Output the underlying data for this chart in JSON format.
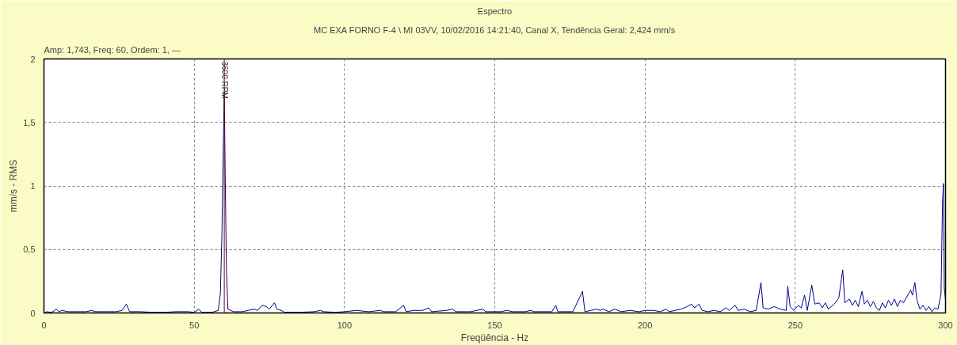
{
  "chart_data": {
    "type": "line",
    "title": "Espectro",
    "subtitle": "MC EXA FORNO F-4 \\ MI 03VV, 10/02/2016 14:21:40, Canal X, Tendência Geral: 2,424 mm/s",
    "annotations": [
      "Amp: 1,743, Freq: 60, Ordem: 1, —"
    ],
    "xlabel": "Freqüência - Hz",
    "ylabel": "mm/s - RMS",
    "xlim": [
      0,
      300
    ],
    "ylim": [
      0,
      2
    ],
    "xticks": [
      0,
      50,
      100,
      150,
      200,
      250,
      300
    ],
    "yticks": [
      0,
      {
        "value": 0.5,
        "label": "0,5"
      },
      1,
      {
        "value": 1.5,
        "label": "1,5"
      },
      2
    ],
    "grid": true,
    "marker": "none",
    "line_style": "solid",
    "ref_lines": [
      {
        "axis": "x",
        "value": 60,
        "label": "3600 RPM",
        "color": "#800000"
      }
    ],
    "series": [
      {
        "color": "#00008b",
        "x": [
          0,
          1,
          2,
          3,
          4,
          5,
          6,
          8,
          10,
          12,
          14,
          16,
          17,
          20,
          24,
          26,
          27.4,
          28.5,
          32,
          36,
          40,
          44,
          48,
          50,
          51.5,
          52.5,
          56,
          58,
          58.7,
          59.2,
          59.6,
          60,
          60.3,
          60.7,
          61.2,
          63,
          66,
          68,
          70,
          71,
          72.6,
          74,
          75,
          76.7,
          77.5,
          79,
          80,
          85,
          90,
          92,
          93,
          97,
          100,
          104,
          108,
          112,
          113,
          117,
          119.7,
          120.5,
          123,
          126,
          128,
          129,
          134,
          136,
          137,
          142,
          146,
          147,
          152,
          154,
          156,
          160,
          162,
          163,
          169,
          170.3,
          171,
          176,
          179.2,
          180,
          182,
          184,
          185,
          186,
          188,
          190,
          192,
          195,
          198,
          200,
          203,
          205,
          207,
          208,
          210,
          212,
          214,
          215.5,
          216.5,
          218,
          219,
          221,
          223,
          225,
          227,
          228,
          230,
          231,
          233,
          235,
          237,
          238.6,
          239.3,
          241,
          243,
          245,
          247,
          247.5,
          248.3,
          249.5,
          251,
          252,
          253.1,
          254,
          255.5,
          256.5,
          258,
          259,
          260,
          261,
          263,
          264.5,
          265.8,
          266.5,
          268,
          269,
          270,
          271,
          272.2,
          273,
          274,
          275,
          276,
          277,
          278,
          279,
          280,
          281,
          282,
          283,
          284,
          285,
          286,
          288.4,
          289,
          289.8,
          290.5,
          291.5,
          292.5,
          293.5,
          294.5,
          295.5,
          296.5,
          297.5,
          298.5,
          299,
          299.3,
          299.6,
          300
        ],
        "values": [
          0,
          0.01,
          0.005,
          0.01,
          0.03,
          0.01,
          0.02,
          0.01,
          0.01,
          0.01,
          0.01,
          0.02,
          0.01,
          0.01,
          0.01,
          0.02,
          0.07,
          0.01,
          0.01,
          0.005,
          0.005,
          0.01,
          0.01,
          0.005,
          0.03,
          0.005,
          0.005,
          0.02,
          0.15,
          0.6,
          1.2,
          1.743,
          1.1,
          0.35,
          0.03,
          0.01,
          0.01,
          0.02,
          0.03,
          0.02,
          0.06,
          0.05,
          0.03,
          0.08,
          0.03,
          0.02,
          0.005,
          0.005,
          0.01,
          0.02,
          0.01,
          0.005,
          0.01,
          0.02,
          0.01,
          0.02,
          0.01,
          0.01,
          0.06,
          0.01,
          0.02,
          0.02,
          0.04,
          0.01,
          0.02,
          0.03,
          0.01,
          0.01,
          0.03,
          0.01,
          0.01,
          0.02,
          0.01,
          0.01,
          0.02,
          0.01,
          0.01,
          0.06,
          0.01,
          0.01,
          0.17,
          0.01,
          0.02,
          0.03,
          0.02,
          0.03,
          0.01,
          0.03,
          0.01,
          0.02,
          0.01,
          0.02,
          0.02,
          0.01,
          0.03,
          0.01,
          0.02,
          0.03,
          0.05,
          0.07,
          0.04,
          0.07,
          0.02,
          0.01,
          0.02,
          0.01,
          0.04,
          0.02,
          0.06,
          0.02,
          0.03,
          0.01,
          0.02,
          0.24,
          0.04,
          0.03,
          0.05,
          0.03,
          0.02,
          0.21,
          0.05,
          0.02,
          0.06,
          0.04,
          0.14,
          0.02,
          0.22,
          0.07,
          0.08,
          0.04,
          0.08,
          0.03,
          0.07,
          0.12,
          0.34,
          0.08,
          0.11,
          0.06,
          0.1,
          0.05,
          0.17,
          0.07,
          0.1,
          0.05,
          0.09,
          0.04,
          0.02,
          0.08,
          0.04,
          0.1,
          0.06,
          0.11,
          0.05,
          0.1,
          0.08,
          0.18,
          0.14,
          0.24,
          0.1,
          0.03,
          0.06,
          0.02,
          0.05,
          0.01,
          0.04,
          0.03,
          0.15,
          0.87,
          1.02,
          0.2,
          0.1
        ]
      }
    ]
  }
}
